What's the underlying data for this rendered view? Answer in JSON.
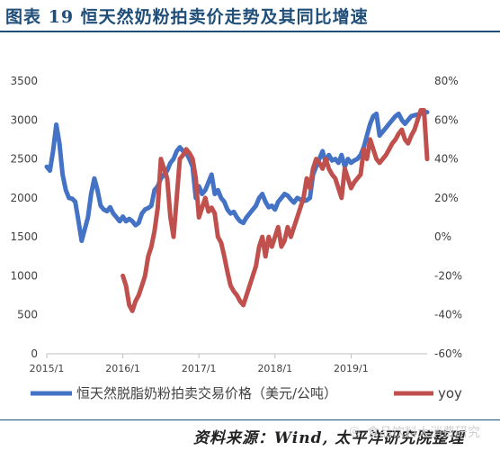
{
  "header": {
    "title": "图表 19 恒天然奶粉拍卖价走势及其同比增速"
  },
  "footer": {
    "source": "资料来源：Wind, 太平洋研究院整理",
    "watermark": "食品饮料大消费研究",
    "watermark_icon": "wechat-icon"
  },
  "colors": {
    "price_line": "#4472c4",
    "yoy_line": "#c0504d",
    "title": "#1f4e79"
  },
  "chart_data": {
    "type": "line",
    "title": "",
    "xlabel": "",
    "ylabel": "",
    "x_tick_labels": [
      "2015/1",
      "2016/1",
      "2017/1",
      "2018/1",
      "2019/1"
    ],
    "x_tick_values": [
      0,
      12,
      24,
      36,
      48
    ],
    "xlim": [
      0,
      60
    ],
    "ylim_left": [
      0,
      3500
    ],
    "ylim_right": [
      -60,
      80
    ],
    "left_ticks": [
      "0",
      "500",
      "1000",
      "1500",
      "2000",
      "2500",
      "3000",
      "3500"
    ],
    "right_ticks": [
      "-60%",
      "-40%",
      "-20%",
      "0%",
      "20%",
      "40%",
      "60%",
      "80%"
    ],
    "grid": false,
    "legend_position": "bottom",
    "series": [
      {
        "name": "恒天然脱脂奶粉拍卖交易价格（美元/公吨）",
        "axis": "left",
        "color": "#4472c4",
        "x": [
          0,
          0.5,
          1,
          1.5,
          2,
          2.5,
          3,
          3.5,
          4,
          4.5,
          5,
          5.5,
          6,
          6.5,
          7,
          7.5,
          8,
          8.5,
          9,
          9.5,
          10,
          10.5,
          11,
          11.5,
          12,
          12.5,
          13,
          13.5,
          14,
          14.5,
          15,
          15.5,
          16,
          16.5,
          17,
          17.5,
          18,
          18.5,
          19,
          19.5,
          20,
          20.5,
          21,
          21.5,
          22,
          22.5,
          23,
          23.5,
          24,
          24.5,
          25,
          25.5,
          26,
          26.5,
          27,
          27.5,
          28,
          28.5,
          29,
          29.5,
          30,
          30.5,
          31,
          31.5,
          32,
          32.5,
          33,
          33.5,
          34,
          34.5,
          35,
          35.5,
          36,
          36.5,
          37,
          37.5,
          38,
          38.5,
          39,
          39.5,
          40,
          40.5,
          41,
          41.5,
          42,
          42.5,
          43,
          43.5,
          44,
          44.5,
          45,
          45.5,
          46,
          46.5,
          47,
          47.5,
          48,
          48.5,
          49,
          49.5,
          50,
          50.5,
          51,
          51.5,
          52,
          52.5,
          53,
          53.5,
          54,
          54.5,
          55,
          55.5,
          56,
          56.5,
          57,
          57.5,
          58,
          58.5,
          59,
          59.5,
          60
        ],
        "values": [
          2400,
          2350,
          2600,
          2940,
          2700,
          2300,
          2100,
          2000,
          1990,
          1950,
          1700,
          1450,
          1600,
          1750,
          2050,
          2250,
          2100,
          1900,
          1850,
          1830,
          1880,
          1800,
          1750,
          1700,
          1760,
          1700,
          1730,
          1700,
          1650,
          1680,
          1800,
          1850,
          1870,
          1900,
          2100,
          2150,
          2250,
          2300,
          2350,
          2450,
          2500,
          2600,
          2650,
          2600,
          2580,
          2500,
          2400,
          2000,
          2150,
          2050,
          2100,
          2200,
          2300,
          2050,
          2100,
          2000,
          1950,
          1850,
          1800,
          1820,
          1750,
          1700,
          1680,
          1750,
          1800,
          1850,
          1900,
          2000,
          2050,
          1950,
          1880,
          1900,
          1850,
          1950,
          2000,
          2050,
          2030,
          1980,
          1940,
          2000,
          1980,
          1960,
          1970,
          2000,
          2300,
          2400,
          2500,
          2600,
          2450,
          2550,
          2480,
          2500,
          2450,
          2550,
          2400,
          2500,
          2450,
          2480,
          2500,
          2550,
          2650,
          2800,
          2950,
          3050,
          3080,
          2800,
          2850,
          2900,
          2950,
          3000,
          3050,
          3080,
          3000,
          2950,
          3000,
          3050,
          3060,
          3070,
          3080,
          3090,
          3100
        ]
      },
      {
        "name": "yoy",
        "axis": "right",
        "color": "#c0504d",
        "x": [
          12,
          12.5,
          13,
          13.5,
          14,
          14.5,
          15,
          15.5,
          16,
          16.5,
          17,
          17.5,
          18,
          18.5,
          19,
          19.5,
          20,
          20.5,
          21,
          21.5,
          22,
          22.5,
          23,
          23.5,
          24,
          24.5,
          25,
          25.5,
          26,
          26.5,
          27,
          27.5,
          28,
          28.5,
          29,
          29.5,
          30,
          30.5,
          31,
          31.5,
          32,
          32.5,
          33,
          33.5,
          34,
          34.5,
          35,
          35.5,
          36,
          36.5,
          37,
          37.5,
          38,
          38.5,
          39,
          39.5,
          40,
          40.5,
          41,
          41.5,
          42,
          42.5,
          43,
          43.5,
          44,
          44.5,
          45,
          45.5,
          46,
          46.5,
          47,
          47.5,
          48,
          48.5,
          49,
          49.5,
          50,
          50.5,
          51,
          51.5,
          52,
          52.5,
          53,
          53.5,
          54,
          54.5,
          55,
          55.5,
          56,
          56.5,
          57,
          57.5,
          58,
          58.5,
          59,
          59.5,
          60
        ],
        "values": [
          -20,
          -25,
          -35,
          -38,
          -33,
          -30,
          -25,
          -20,
          -10,
          -5,
          3,
          15,
          40,
          35,
          30,
          10,
          0,
          20,
          40,
          42,
          45,
          43,
          40,
          30,
          10,
          15,
          20,
          13,
          15,
          12,
          0,
          -3,
          -10,
          -18,
          -25,
          -28,
          -30,
          -33,
          -35,
          -30,
          -25,
          -20,
          -15,
          -5,
          0,
          -10,
          0,
          -5,
          0,
          5,
          -5,
          -2,
          5,
          0,
          5,
          10,
          15,
          20,
          30,
          25,
          35,
          40,
          38,
          35,
          40,
          35,
          32,
          30,
          25,
          20,
          35,
          30,
          25,
          28,
          30,
          32,
          45,
          40,
          50,
          45,
          40,
          38,
          40,
          42,
          45,
          48,
          50,
          53,
          55,
          50,
          48,
          52,
          55,
          60,
          65,
          65,
          40
        ]
      }
    ]
  }
}
